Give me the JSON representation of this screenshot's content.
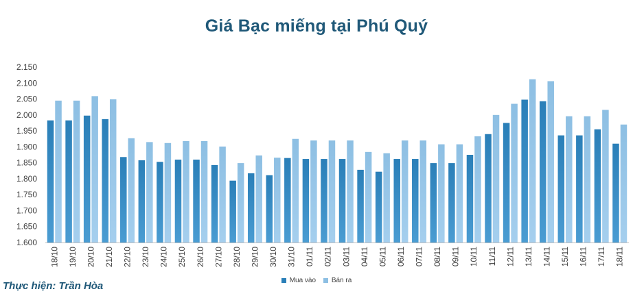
{
  "credit": "Thực hiện: Trần Hòa",
  "colors": {
    "buy": "#2a7fb8",
    "buy_light": "#4a9cd2",
    "sell": "#8dbfe3",
    "sell_light": "#a5cfee",
    "axis": "#bfbfbf",
    "title": "#1f5878"
  },
  "chart_data": {
    "type": "bar",
    "title": "Giá Bạc miếng tại Phú Quý",
    "xlabel": "",
    "ylabel": "",
    "ylim": [
      1600,
      2150
    ],
    "yticks": [
      1600,
      1650,
      1700,
      1750,
      1800,
      1850,
      1900,
      1950,
      2000,
      2050,
      2100,
      2150
    ],
    "ytick_labels": [
      "1.600",
      "1.650",
      "1.700",
      "1.750",
      "1.800",
      "1.850",
      "1.900",
      "1.950",
      "2.000",
      "2.050",
      "2.100",
      "2.150"
    ],
    "grid": false,
    "legend": "bottom",
    "categories": [
      "18/10",
      "19/10",
      "20/10",
      "21/10",
      "22/10",
      "23/10",
      "24/10",
      "25/10",
      "26/10",
      "27/10",
      "28/10",
      "29/10",
      "30/10",
      "31/10",
      "01/11",
      "02/11",
      "03/11",
      "04/11",
      "05/11",
      "06/11",
      "07/11",
      "08/11",
      "09/11",
      "10/11",
      "11/11",
      "12/11",
      "13/11",
      "14/11",
      "15/11",
      "16/11",
      "17/11",
      "18/11"
    ],
    "series": [
      {
        "name": "Mua vào",
        "values": [
          1983,
          1983,
          1998,
          1987,
          1868,
          1858,
          1853,
          1860,
          1860,
          1843,
          1794,
          1817,
          1811,
          1865,
          1862,
          1862,
          1862,
          1828,
          1822,
          1862,
          1862,
          1849,
          1849,
          1875,
          1940,
          1975,
          2048,
          2043,
          1936,
          1936,
          1955,
          1910
        ]
      },
      {
        "name": "Bán ra",
        "values": [
          2045,
          2045,
          2059,
          2049,
          1927,
          1915,
          1912,
          1918,
          1918,
          1901,
          1849,
          1873,
          1866,
          1925,
          1920,
          1920,
          1920,
          1884,
          1880,
          1920,
          1920,
          1908,
          1908,
          1933,
          2000,
          2035,
          2112,
          2106,
          1996,
          1996,
          2016,
          1970
        ]
      }
    ]
  }
}
